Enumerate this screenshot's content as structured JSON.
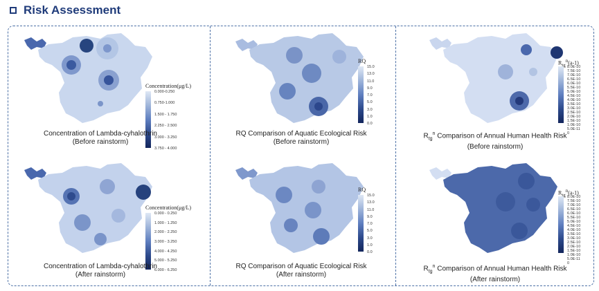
{
  "header": {
    "title": "Risk Assessment"
  },
  "legends": {
    "conc_before": {
      "title": "Concentration(μg/L)",
      "labels": [
        "0.000-0.250",
        "0.750-1.000",
        "1.500 - 1.750",
        "2.250 - 2.500",
        "3.000 - 3.250",
        "3.750 - 4.000"
      ]
    },
    "rq": {
      "title": "RQ",
      "labels": [
        "15.0",
        "13.0",
        "11.0",
        "9.0",
        "7.0",
        "5.0",
        "3.0",
        "1.0",
        "0.0"
      ]
    },
    "rhh_before": {
      "title_main": "R",
      "title_sub": "tg",
      "title_sup": "n",
      "title_tail": "(a-1)",
      "labels": [
        "8.0E-10",
        "7.5E-10",
        "7.0E-10",
        "6.5E-10",
        "6.0E-10",
        "5.5E-10",
        "5.0E-10",
        "4.5E-10",
        "4.0E-10",
        "3.5E-10",
        "3.0E-10",
        "2.5E-10",
        "2.0E-10",
        "1.5E-10",
        "1.0E-10",
        "5.0E-11",
        "0"
      ]
    },
    "conc_after": {
      "title": "Concentration(μg/L)",
      "labels": [
        "0.000 - 0.250",
        "1.000 - 1.250",
        "2.000 - 2.250",
        "3.000 - 3.250",
        "4.000 - 4.250",
        "5.000 - 5.250",
        "6.000 - 6.250"
      ]
    },
    "rhh_after": {
      "title_main": "R",
      "title_sub": "tg",
      "title_sup": "n",
      "title_tail": "(a-1)",
      "labels": [
        "8.0E-10",
        "7.5E-10",
        "7.0E-10",
        "6.5E-10",
        "6.0E-10",
        "5.5E-10",
        "5.0E-10",
        "4.5E-10",
        "4.0E-10",
        "3.5E-10",
        "3.0E-10",
        "2.5E-10",
        "2.0E-10",
        "1.5E-10",
        "1.0E-10",
        "5.0E-11",
        "0"
      ]
    }
  },
  "captions": {
    "conc_before": {
      "line1": "Concentration of Lambda-cyhalothrin",
      "line2": "(Before rainstorm)"
    },
    "rq_before": {
      "line1": "RQ Comparison of Aquatic Ecological Risk",
      "line2": "(Before rainstorm)"
    },
    "rhh_before": {
      "prefix": "R",
      "sub": "tg",
      "sup": "n",
      "line1": " Comparison of Annual Human Health Risk",
      "line2": "(Before rainstorm)"
    },
    "conc_after": {
      "line1": "Concentration of Lambda-cyhalothrin",
      "line2": "(After rainstorm)"
    },
    "rq_after": {
      "line1": "RQ Comparison of Aquatic Ecological Risk",
      "line2": "(After rainstorm)"
    },
    "rhh_after": {
      "prefix": "R",
      "sub": "tg",
      "sup": "n",
      "line1": " Comparison of Annual Human Health Risk",
      "line2": "(After rainstorm)"
    }
  }
}
